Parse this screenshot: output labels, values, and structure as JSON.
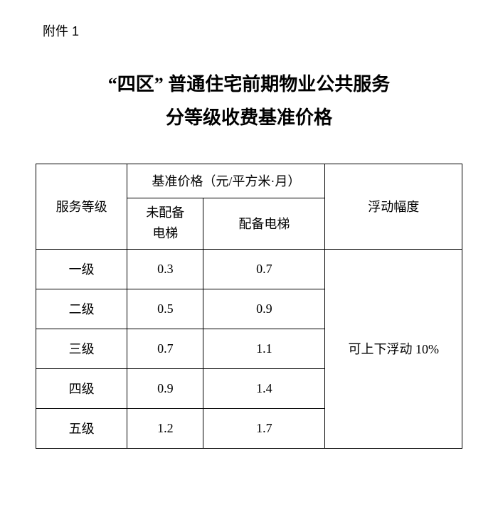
{
  "attachment_label": "附件 1",
  "title_line1": "“四区” 普通住宅前期物业公共服务",
  "title_line2": "分等级收费基准价格",
  "table": {
    "header": {
      "service_level": "服务等级",
      "base_price": "基准价格（元/平方米·月）",
      "no_elevator_l1": "未配备",
      "no_elevator_l2": "电梯",
      "with_elevator": "配备电梯",
      "float_range": "浮动幅度"
    },
    "rows": [
      {
        "level": "一级",
        "no_elev": "0.3",
        "with_elev": "0.7"
      },
      {
        "level": "二级",
        "no_elev": "0.5",
        "with_elev": "0.9"
      },
      {
        "level": "三级",
        "no_elev": "0.7",
        "with_elev": "1.1"
      },
      {
        "level": "四级",
        "no_elev": "0.9",
        "with_elev": "1.4"
      },
      {
        "level": "五级",
        "no_elev": "1.2",
        "with_elev": "1.7"
      }
    ],
    "float_text": "可上下浮动 10%"
  }
}
